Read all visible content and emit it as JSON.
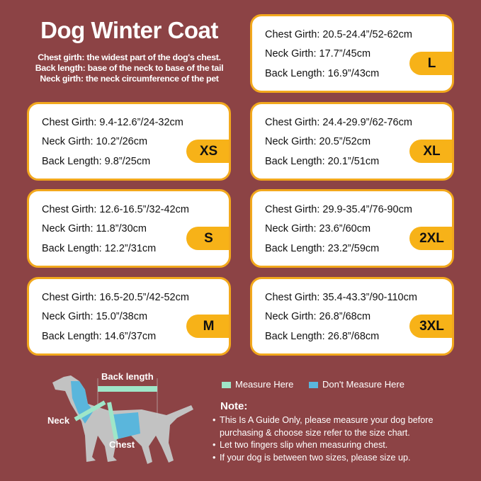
{
  "title": "Dog Winter Coat",
  "description": [
    "Chest girth: the widest part of the dog's chest.",
    "Back length: base of the neck to base of the tail",
    "Neck girth: the neck circumference of the pet"
  ],
  "sizes": [
    {
      "size": "L",
      "chest": "Chest Girth: 20.5-24.4”/52-62cm",
      "neck": "Neck Girth: 17.7”/45cm",
      "back": "Back Length: 16.9”/43cm"
    },
    {
      "size": "XS",
      "chest": "Chest Girth: 9.4-12.6”/24-32cm",
      "neck": "Neck Girth: 10.2”/26cm",
      "back": "Back Length: 9.8”/25cm"
    },
    {
      "size": "XL",
      "chest": "Chest Girth: 24.4-29.9”/62-76cm",
      "neck": "Neck Girth: 20.5”/52cm",
      "back": "Back Length: 20.1”/51cm"
    },
    {
      "size": "S",
      "chest": "Chest Girth: 12.6-16.5”/32-42cm",
      "neck": "Neck Girth: 11.8”/30cm",
      "back": "Back Length: 12.2”/31cm"
    },
    {
      "size": "2XL",
      "chest": "Chest Girth: 29.9-35.4”/76-90cm",
      "neck": "Neck Girth: 23.6”/60cm",
      "back": "Back Length: 23.2”/59cm"
    },
    {
      "size": "M",
      "chest": "Chest Girth: 16.5-20.5”/42-52cm",
      "neck": "Neck Girth: 15.0”/38cm",
      "back": "Back Length: 14.6”/37cm"
    },
    {
      "size": "3XL",
      "chest": "Chest Girth: 35.4-43.3”/90-110cm",
      "neck": "Neck Girth: 26.8”/68cm",
      "back": "Back Length: 26.8”/68cm"
    }
  ],
  "diagram": {
    "back_label": "Back length",
    "neck_label": "Neck",
    "chest_label": "Chest"
  },
  "legend": {
    "measure": "Measure Here",
    "dont_measure": "Don't Measure Here",
    "measure_color": "#9fe6c8",
    "dont_color": "#5ab6dc"
  },
  "note": {
    "heading": "Note:",
    "items": [
      "This Is A Guide Only, please measure your dog before purchasing & choose size refer to the size chart.",
      "Let two fingers slip when measuring chest.",
      "If your dog is between two sizes, please size up."
    ]
  },
  "colors": {
    "background": "#8c4345",
    "accent": "#f7b218"
  }
}
